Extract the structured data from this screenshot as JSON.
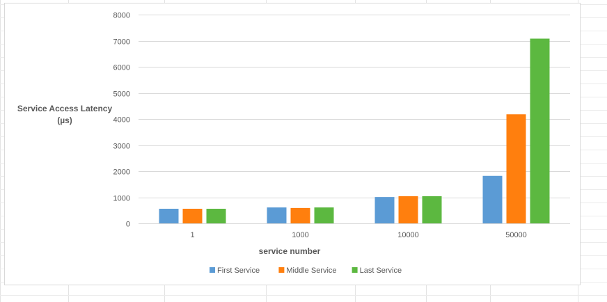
{
  "chart_data": {
    "type": "bar",
    "categories": [
      "1",
      "1000",
      "10000",
      "50000"
    ],
    "series": [
      {
        "name": "First Service",
        "color": "#5b9bd5",
        "values": [
          560,
          610,
          1010,
          1820
        ]
      },
      {
        "name": "Middle Service",
        "color": "#ff7f0e",
        "values": [
          560,
          590,
          1040,
          4180
        ]
      },
      {
        "name": "Last Service",
        "color": "#5cb840",
        "values": [
          560,
          610,
          1040,
          7080
        ]
      }
    ],
    "ylim": [
      0,
      8000
    ],
    "yticks": [
      "0",
      "1000",
      "2000",
      "3000",
      "4000",
      "5000",
      "6000",
      "7000",
      "8000"
    ],
    "ylabel": [
      "Service Access Latency",
      "(µs)"
    ],
    "xlabel": "service number",
    "title": "",
    "grid": true,
    "legend_position": "bottom"
  },
  "colors": {
    "gridline": "#d9d9d9",
    "axis_text": "#595959"
  }
}
